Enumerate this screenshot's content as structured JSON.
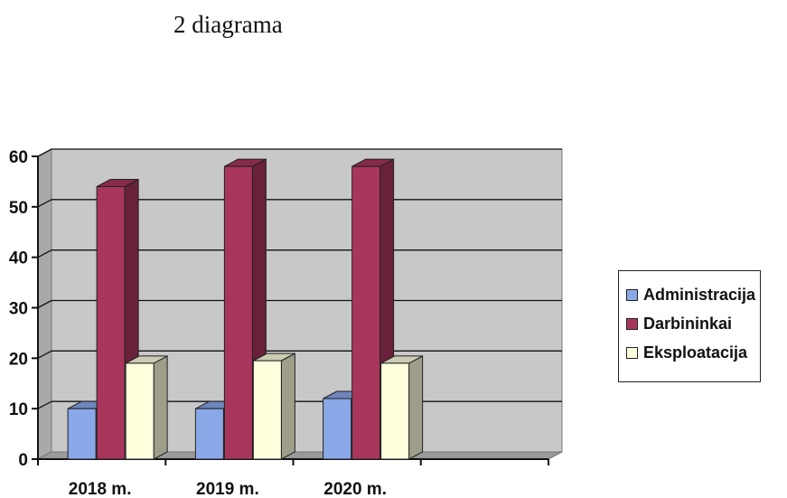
{
  "page": {
    "title": "2 diagrama"
  },
  "chart_data": {
    "type": "bar",
    "title": "",
    "xlabel": "",
    "ylabel": "",
    "categories": [
      "2018 m.",
      "2019 m.",
      "2020 m."
    ],
    "series": [
      {
        "name": "Administracija",
        "values": [
          10,
          10,
          12
        ],
        "color": "#8aa8e8"
      },
      {
        "name": "Darbininkai",
        "values": [
          54,
          58,
          58
        ],
        "color": "#a8365c"
      },
      {
        "name": "Eksploatacija",
        "values": [
          19,
          19.5,
          19
        ],
        "color": "#ffffde"
      }
    ],
    "ylim": [
      0,
      60
    ],
    "yticks": [
      0,
      10,
      20,
      30,
      40,
      50,
      60
    ],
    "grid": true,
    "background_color": "#c8c8c8",
    "legend_position": "right",
    "three_d": true
  }
}
